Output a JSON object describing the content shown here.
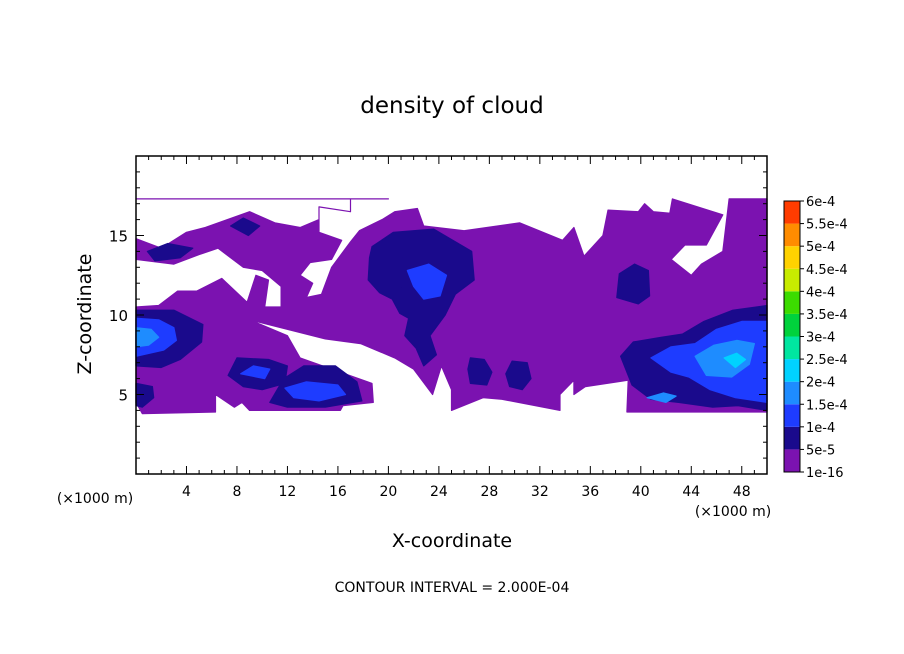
{
  "chart_data": {
    "type": "heatmap",
    "title": "density of cloud",
    "xlabel": "X-coordinate",
    "ylabel": "Z-coordinate",
    "x_unit": "(×1000 m)",
    "y_unit": "(×1000 m)",
    "xlim": [
      0,
      50
    ],
    "ylim": [
      0,
      20
    ],
    "x_ticks": [
      4,
      8,
      12,
      16,
      20,
      24,
      28,
      32,
      36,
      40,
      44,
      48
    ],
    "y_ticks": [
      5,
      10,
      15
    ],
    "footer": "CONTOUR INTERVAL = 2.000E-04",
    "colorbar": {
      "levels": [
        {
          "label": "1e-16",
          "color": "#7b12b0"
        },
        {
          "label": "5e-5",
          "color": "#1a0a8c"
        },
        {
          "label": "1e-4",
          "color": "#1e3cff"
        },
        {
          "label": "1.5e-4",
          "color": "#1e8cff"
        },
        {
          "label": "2e-4",
          "color": "#00d2ff"
        },
        {
          "label": "2.5e-4",
          "color": "#00e6a0"
        },
        {
          "label": "3e-4",
          "color": "#00d23c"
        },
        {
          "label": "3.5e-4",
          "color": "#3cdc00"
        },
        {
          "label": "4e-4",
          "color": "#c8ec00"
        },
        {
          "label": "4.5e-4",
          "color": "#ffd200"
        },
        {
          "label": "5e-4",
          "color": "#ff8c00"
        },
        {
          "label": "5.5e-4",
          "color": "#ff3c00"
        },
        {
          "label": "6e-4",
          "color": "#ff9696"
        }
      ]
    },
    "regions": [
      {
        "level": 0,
        "poly": [
          [
            0,
            17.3
          ],
          [
            17,
            17.3
          ],
          [
            17,
            16.5
          ],
          [
            14.5,
            16.8
          ],
          [
            14.5,
            16
          ],
          [
            13,
            15.5
          ],
          [
            11,
            15.8
          ],
          [
            9,
            16.5
          ],
          [
            5.5,
            15.5
          ],
          [
            4,
            15.2
          ],
          [
            2,
            14.2
          ],
          [
            0,
            14.8
          ],
          [
            0,
            13.5
          ],
          [
            3,
            13.2
          ],
          [
            5,
            13.8
          ],
          [
            6.5,
            14.2
          ],
          [
            8.5,
            13
          ],
          [
            10,
            12.8
          ],
          [
            10,
            12.8
          ],
          [
            11.5,
            11.8
          ],
          [
            11.5,
            10.5
          ],
          [
            10.2,
            10.5
          ],
          [
            10.5,
            12.2
          ],
          [
            9.5,
            12.5
          ],
          [
            8.8,
            10.8
          ],
          [
            6.8,
            12.3
          ],
          [
            4.8,
            11.5
          ],
          [
            3.3,
            11.5
          ],
          [
            1.8,
            10.6
          ],
          [
            0,
            10.5
          ],
          [
            0,
            4.5
          ],
          [
            0.5,
            3.8
          ],
          [
            6.3,
            3.9
          ],
          [
            6.3,
            5
          ],
          [
            7.8,
            4.2
          ],
          [
            8.4,
            4.5
          ],
          [
            9,
            4
          ],
          [
            16.2,
            4
          ],
          [
            16.4,
            4.3
          ],
          [
            18.8,
            4.5
          ],
          [
            18.7,
            5.7
          ],
          [
            13,
            7.3
          ],
          [
            12,
            8.7
          ],
          [
            9,
            9.7
          ],
          [
            15,
            8.5
          ],
          [
            17.8,
            8.2
          ],
          [
            20.5,
            7.3
          ],
          [
            22,
            6.6
          ],
          [
            23.5,
            5
          ],
          [
            24.2,
            6.8
          ],
          [
            25,
            5.3
          ],
          [
            25,
            4
          ],
          [
            27.5,
            4.8
          ],
          [
            29,
            4.7
          ],
          [
            33.6,
            4
          ],
          [
            33.6,
            5
          ],
          [
            34.7,
            5.9
          ],
          [
            34.7,
            5
          ],
          [
            35.6,
            5.5
          ],
          [
            39,
            5.9
          ],
          [
            38.9,
            3.9
          ],
          [
            50,
            3.9
          ],
          [
            50,
            17.3
          ],
          [
            47,
            17.3
          ],
          [
            46.5,
            14
          ],
          [
            44.8,
            13.2
          ],
          [
            44,
            12.5
          ],
          [
            42.4,
            13.5
          ],
          [
            43.5,
            14.4
          ],
          [
            45.2,
            14.4
          ],
          [
            46.5,
            16.3
          ],
          [
            42.5,
            17.3
          ],
          [
            42.3,
            16.4
          ],
          [
            41,
            16.5
          ],
          [
            40.3,
            17
          ],
          [
            39.8,
            16.5
          ],
          [
            37.4,
            16.6
          ],
          [
            37,
            15
          ],
          [
            35.5,
            13.7
          ],
          [
            34.7,
            15.5
          ],
          [
            33.8,
            14.7
          ],
          [
            30.4,
            15.8
          ],
          [
            26,
            15.3
          ],
          [
            22.8,
            15.6
          ],
          [
            22.3,
            16.7
          ],
          [
            20.5,
            16.5
          ],
          [
            19.5,
            16
          ],
          [
            17.7,
            15.3
          ],
          [
            17,
            14.6
          ],
          [
            15.5,
            13
          ],
          [
            14.7,
            11.3
          ],
          [
            13.5,
            11.1
          ],
          [
            14,
            12
          ],
          [
            13,
            12.5
          ],
          [
            13.8,
            13.3
          ],
          [
            15.5,
            13.5
          ],
          [
            16.3,
            14.7
          ],
          [
            14.5,
            15.2
          ],
          [
            14.5,
            16
          ],
          [
            14.5,
            16.8
          ],
          [
            17,
            16.5
          ],
          [
            17,
            17.3
          ],
          [
            20,
            17.3
          ],
          [
            0,
            17.3
          ]
        ]
      },
      {
        "level": 1,
        "poly": [
          [
            0,
            10.3
          ],
          [
            3,
            10.3
          ],
          [
            5.3,
            9.4
          ],
          [
            5.2,
            8.3
          ],
          [
            3.5,
            7.2
          ],
          [
            2,
            6.7
          ],
          [
            0,
            6.8
          ]
        ]
      },
      {
        "level": 1,
        "poly": [
          [
            0,
            5.7
          ],
          [
            1.3,
            5.5
          ],
          [
            1.4,
            4.8
          ],
          [
            0.5,
            4.2
          ],
          [
            0,
            4.3
          ]
        ]
      },
      {
        "level": 1,
        "poly": [
          [
            7.3,
            6.2
          ],
          [
            8,
            7.3
          ],
          [
            10.5,
            7.2
          ],
          [
            12,
            6.8
          ],
          [
            11.8,
            5.7
          ],
          [
            10,
            5.3
          ],
          [
            8.5,
            5.5
          ]
        ]
      },
      {
        "level": 1,
        "poly": [
          [
            10.6,
            4.5
          ],
          [
            11.7,
            6
          ],
          [
            13.3,
            6.8
          ],
          [
            15.8,
            6.8
          ],
          [
            17.5,
            5.8
          ],
          [
            17.9,
            4.6
          ],
          [
            15,
            4.2
          ],
          [
            12,
            4.2
          ]
        ]
      },
      {
        "level": 1,
        "poly": [
          [
            18.7,
            14.3
          ],
          [
            20.4,
            15.2
          ],
          [
            23.6,
            15.4
          ],
          [
            26.6,
            14
          ],
          [
            26.8,
            12.2
          ],
          [
            25.3,
            11.3
          ],
          [
            24.5,
            10
          ],
          [
            23.3,
            8.7
          ],
          [
            23.8,
            7.5
          ],
          [
            22.8,
            6.8
          ],
          [
            22.2,
            7.9
          ],
          [
            21.3,
            8.7
          ],
          [
            21.6,
            9.8
          ],
          [
            20.9,
            10.1
          ],
          [
            20.3,
            11
          ],
          [
            19.3,
            11.4
          ],
          [
            18.4,
            12.2
          ],
          [
            18.5,
            13.6
          ]
        ]
      },
      {
        "level": 1,
        "poly": [
          [
            26.3,
            6.6
          ],
          [
            26.5,
            7.3
          ],
          [
            27.6,
            7.2
          ],
          [
            28.2,
            6.4
          ],
          [
            27.8,
            5.6
          ],
          [
            26.5,
            5.7
          ]
        ]
      },
      {
        "level": 1,
        "poly": [
          [
            29.3,
            6.3
          ],
          [
            29.8,
            7.1
          ],
          [
            31,
            7
          ],
          [
            31.3,
            6
          ],
          [
            30.6,
            5.3
          ],
          [
            29.6,
            5.5
          ]
        ]
      },
      {
        "level": 1,
        "poly": [
          [
            38.1,
            11.1
          ],
          [
            38.3,
            12.6
          ],
          [
            39.5,
            13.2
          ],
          [
            40.6,
            12.8
          ],
          [
            40.7,
            11.2
          ],
          [
            39.8,
            10.7
          ]
        ]
      },
      {
        "level": 1,
        "poly": [
          [
            38.4,
            7.4
          ],
          [
            39.4,
            8.3
          ],
          [
            41.6,
            8.6
          ],
          [
            43.3,
            8.8
          ],
          [
            45,
            9.6
          ],
          [
            47.3,
            10.3
          ],
          [
            50,
            10.6
          ],
          [
            50,
            4
          ],
          [
            47.7,
            4.3
          ],
          [
            45.7,
            4.2
          ],
          [
            43,
            4.5
          ],
          [
            40.8,
            4.7
          ],
          [
            39.3,
            5.6
          ]
        ]
      },
      {
        "level": 1,
        "poly": [
          [
            0.9,
            14
          ],
          [
            2.5,
            14.5
          ],
          [
            4.5,
            14.2
          ],
          [
            3.5,
            13.6
          ],
          [
            1.5,
            13.4
          ]
        ]
      },
      {
        "level": 1,
        "poly": [
          [
            7.5,
            15.6
          ],
          [
            8.5,
            16.1
          ],
          [
            9.8,
            15.6
          ],
          [
            8.9,
            15
          ]
        ]
      },
      {
        "level": 1,
        "poly": [
          [
            19.5,
            12.7
          ],
          [
            21.2,
            13.6
          ],
          [
            22.8,
            13.7
          ],
          [
            23.2,
            12.8
          ],
          [
            22,
            11.8
          ],
          [
            20.2,
            11.6
          ]
        ]
      },
      {
        "level": 2,
        "poly": [
          [
            0,
            9.8
          ],
          [
            1.8,
            9.7
          ],
          [
            3,
            9.2
          ],
          [
            3.2,
            8.4
          ],
          [
            2.2,
            7.8
          ],
          [
            0,
            7.4
          ]
        ]
      },
      {
        "level": 2,
        "poly": [
          [
            11.8,
            5.4
          ],
          [
            13.5,
            5.8
          ],
          [
            16,
            5.6
          ],
          [
            16.6,
            5
          ],
          [
            14.5,
            4.6
          ],
          [
            12.5,
            4.8
          ]
        ]
      },
      {
        "level": 2,
        "poly": [
          [
            21.5,
            12.8
          ],
          [
            23.2,
            13.2
          ],
          [
            24.6,
            12.5
          ],
          [
            24.1,
            11.2
          ],
          [
            22.8,
            11
          ],
          [
            22,
            11.8
          ]
        ]
      },
      {
        "level": 2,
        "poly": [
          [
            40.8,
            7.3
          ],
          [
            42.4,
            8
          ],
          [
            44.3,
            8.2
          ],
          [
            46,
            9.1
          ],
          [
            48,
            9.6
          ],
          [
            50,
            9.6
          ],
          [
            50,
            4.5
          ],
          [
            47.5,
            4.8
          ],
          [
            45.5,
            5.3
          ],
          [
            43.8,
            6.1
          ],
          [
            42.4,
            6.4
          ]
        ]
      },
      {
        "level": 2,
        "poly": [
          [
            8.3,
            6.3
          ],
          [
            9.3,
            6.8
          ],
          [
            10.6,
            6.6
          ],
          [
            10.2,
            6
          ]
        ]
      },
      {
        "level": 3,
        "poly": [
          [
            0,
            9.2
          ],
          [
            1.2,
            9.1
          ],
          [
            1.8,
            8.6
          ],
          [
            1,
            8.1
          ],
          [
            0,
            8
          ]
        ]
      },
      {
        "level": 3,
        "poly": [
          [
            44.3,
            7.4
          ],
          [
            45.8,
            8.1
          ],
          [
            47.6,
            8.4
          ],
          [
            49,
            8.2
          ],
          [
            48.6,
            6.9
          ],
          [
            47.2,
            6.1
          ],
          [
            45.2,
            6.2
          ]
        ]
      },
      {
        "level": 3,
        "poly": [
          [
            40.5,
            4.8
          ],
          [
            41.8,
            5.1
          ],
          [
            42.8,
            4.9
          ],
          [
            42,
            4.5
          ]
        ]
      },
      {
        "level": 4,
        "poly": [
          [
            46.6,
            7.3
          ],
          [
            47.6,
            7.6
          ],
          [
            48.3,
            7.2
          ],
          [
            47.5,
            6.7
          ]
        ]
      }
    ]
  }
}
